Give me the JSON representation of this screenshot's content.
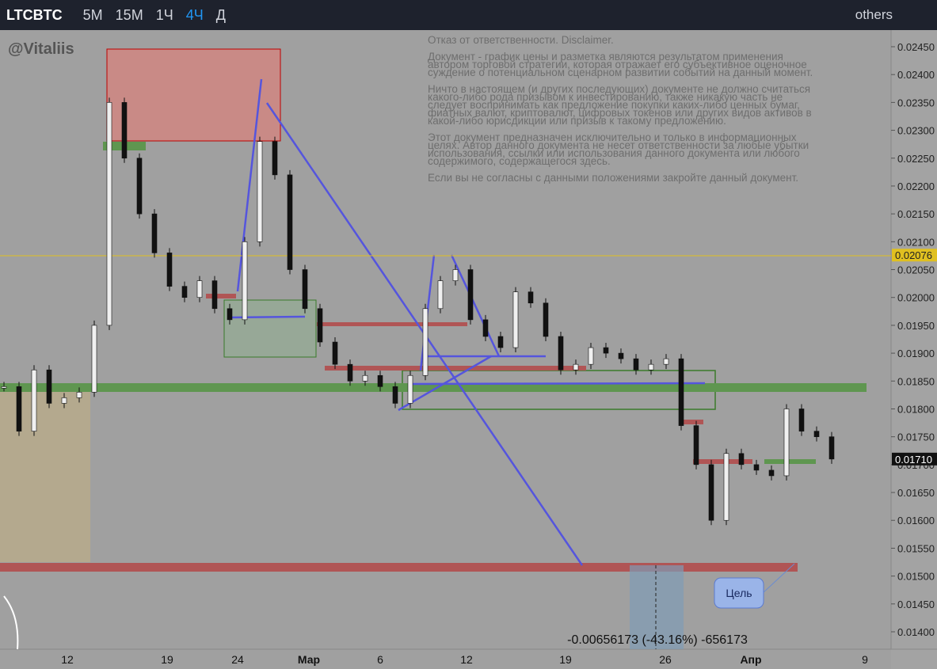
{
  "toolbar": {
    "symbol": "LTCBTC",
    "intervals": [
      "5M",
      "15M",
      "1Ч",
      "4Ч",
      "Д"
    ],
    "active_interval": 3,
    "layout_menu": "others"
  },
  "watermark": "@Vitaliis",
  "disclaimer": [
    [
      "Отказ от ответственности. Disclaimer."
    ],
    [
      "Документ - график цены и разметка являются результатом применения",
      "автором торговой стратегии, которая отражает его субъективное оценочное",
      "суждение о потенциальном сценарном развитии событий на данный момент."
    ],
    [
      "Ничто в настоящем (и других последующих) документе не должно считаться",
      "какого-либо рода призывом к инвестированию, также никакую часть не",
      "следует воспринимать как предложение покупки каких-либо ценных бумаг,",
      "фиатных валют, криптовалют, цифровых токенов или других видов активов в",
      "какой-либо юрисдикции или призыв к такому предложению."
    ],
    [
      "Этот документ предназначен исключительно и только в информационных",
      "целях. Автор данного документа не несет ответственности за любые убытки",
      "использования, ссылки или использования данного документа или любого",
      "содержимого, содержащегося здесь."
    ],
    [
      "Если вы не согласны с данными положениями закройте данный документ."
    ]
  ],
  "price_axis": {
    "range": [
      0.0245,
      0.014
    ],
    "ticks": [
      {
        "value": 0.0245,
        "label": "0.02450"
      },
      {
        "value": 0.024,
        "label": "0.02400"
      },
      {
        "value": 0.0235,
        "label": "0.02350"
      },
      {
        "value": 0.023,
        "label": "0.02300"
      },
      {
        "value": 0.0225,
        "label": "0.02250"
      },
      {
        "value": 0.022,
        "label": "0.02200"
      },
      {
        "value": 0.0215,
        "label": "0.02150"
      },
      {
        "value": 0.021,
        "label": "0.02100"
      },
      {
        "value": 0.0205,
        "label": "0.02050"
      },
      {
        "value": 0.02,
        "label": "0.02000"
      },
      {
        "value": 0.0195,
        "label": "0.01950"
      },
      {
        "value": 0.019,
        "label": "0.01900"
      },
      {
        "value": 0.0185,
        "label": "0.01850"
      },
      {
        "value": 0.018,
        "label": "0.01800"
      },
      {
        "value": 0.0175,
        "label": "0.01750"
      },
      {
        "value": 0.017,
        "label": "0.01700"
      },
      {
        "value": 0.0165,
        "label": "0.01650"
      },
      {
        "value": 0.016,
        "label": "0.01600"
      },
      {
        "value": 0.0155,
        "label": "0.01550"
      },
      {
        "value": 0.015,
        "label": "0.01500"
      },
      {
        "value": 0.0145,
        "label": "0.01450"
      },
      {
        "value": 0.014,
        "label": "0.01400"
      }
    ],
    "markers": [
      {
        "value": 0.02076,
        "label": "0.02076"
      },
      {
        "value": 0.0171,
        "label": "0.01710"
      }
    ]
  },
  "time_axis": [
    "12",
    "19",
    "24",
    "Мар",
    "6",
    "12",
    "19",
    "26",
    "Апр",
    "9"
  ],
  "closes": [
    0.0184,
    0.0176,
    0.0187,
    0.0181,
    0.0182,
    0.0183,
    0.0195,
    0.0235,
    0.0225,
    0.0215,
    0.0208,
    0.0202,
    0.02,
    0.0203,
    0.0198,
    0.0196,
    0.021,
    0.0228,
    0.0222,
    0.0205,
    0.0198,
    0.0192,
    0.0188,
    0.0185,
    0.0186,
    0.0184,
    0.0181,
    0.0186,
    0.0198,
    0.0203,
    0.0205,
    0.0196,
    0.0193,
    0.0191,
    0.0201,
    0.0199,
    0.0193,
    0.0187,
    0.0188,
    0.0191,
    0.019,
    0.0189,
    0.0187,
    0.0188,
    0.0189,
    0.0177,
    0.017,
    0.016,
    0.0172,
    0.017,
    0.0169,
    0.0168,
    0.018,
    0.0176,
    0.0175,
    0.0171
  ],
  "target_label": "Цель",
  "measurement": "-0.00656173 (-43.16%) -656173"
}
